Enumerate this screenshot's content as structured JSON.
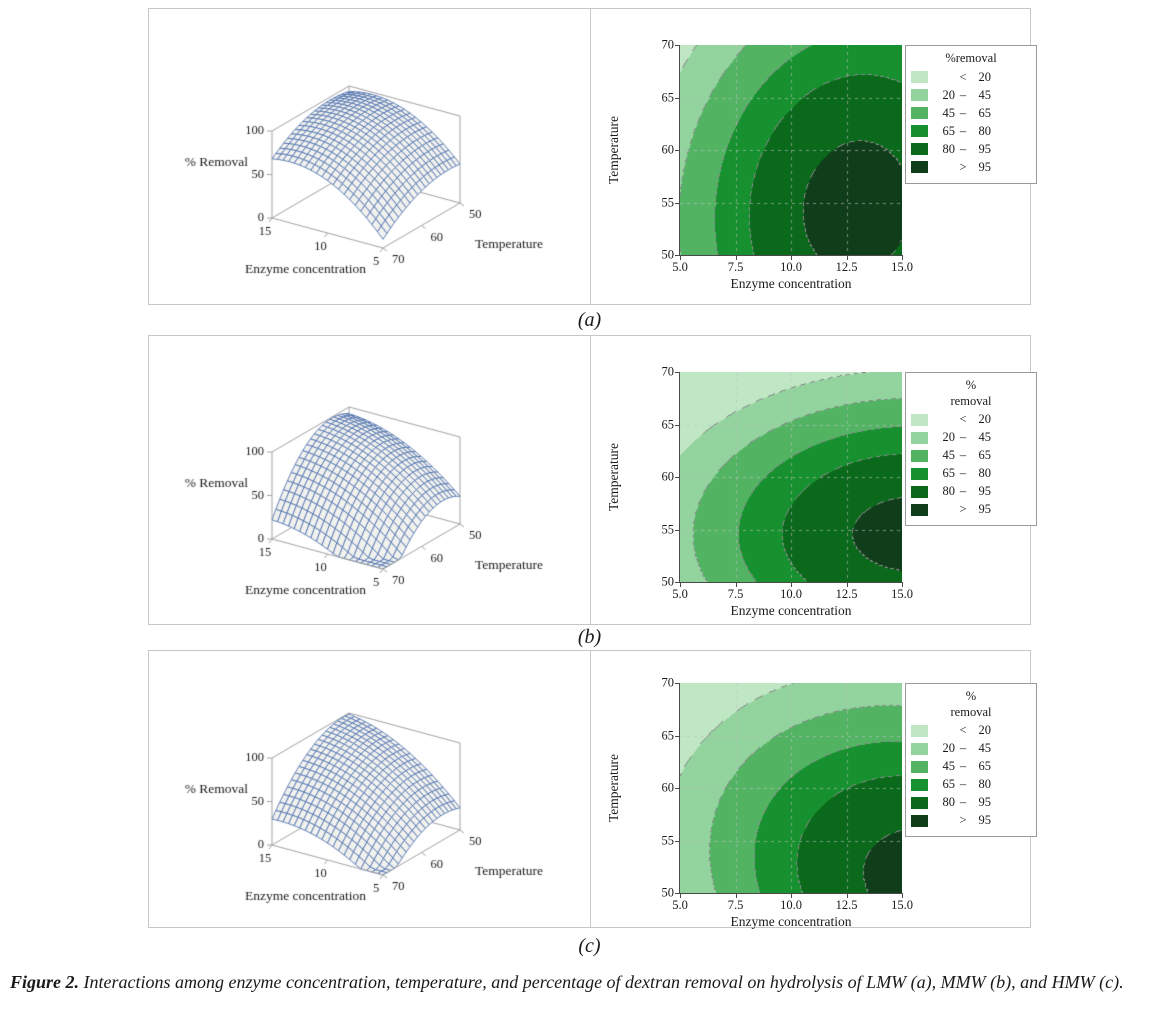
{
  "figure": {
    "caption_label": "Figure 2.",
    "caption_text": " Interactions among enzyme concentration, temperature, and percentage of dextran removal on hydrolysis of LMW (a), MMW (b), and HMW (c)."
  },
  "colors": {
    "band_colors": [
      "#bfe7c3",
      "#92d39e",
      "#52b463",
      "#17912f",
      "#0b691c",
      "#113e1a"
    ],
    "wireframe": "#4a6fad",
    "surface_fill": "#f1f1ee",
    "axis_gray": "#a0a0a0",
    "border_gray": "#c7c7c7",
    "contour_boundary": "#8a8a8a",
    "text": "#1a1a1a"
  },
  "chart_data": [
    {
      "panel_label": "(a)",
      "sample": "LMW",
      "type": "surface+contour",
      "surface": {
        "z_label": "% Removal",
        "z_ticks": [
          "0",
          "50",
          "100"
        ],
        "x_label": "Enzyme concentration",
        "x_ticks": [
          "15",
          "10",
          "5"
        ],
        "y_label": "Temperature",
        "y_ticks": [
          "70",
          "60",
          "50"
        ],
        "x_range": [
          5,
          15
        ],
        "y_range": [
          50,
          70
        ],
        "z_range": [
          0,
          100
        ]
      },
      "contour": {
        "x_label": "Enzyme concentration",
        "y_label": "Temperature",
        "x_ticks": [
          "5.0",
          "7.5",
          "10.0",
          "12.5",
          "15.0"
        ],
        "y_ticks": [
          "70",
          "65",
          "60",
          "55",
          "50"
        ],
        "x_range": [
          5,
          15
        ],
        "y_range": [
          50,
          70
        ],
        "legend": {
          "title_lines": [
            "%removal",
            ""
          ],
          "entries": [
            {
              "lo": "",
              "op": "<",
              "hi": "20"
            },
            {
              "lo": "20",
              "op": "–",
              "hi": "45"
            },
            {
              "lo": "45",
              "op": "–",
              "hi": "65"
            },
            {
              "lo": "65",
              "op": "–",
              "hi": "80"
            },
            {
              "lo": "80",
              "op": "–",
              "hi": "95"
            },
            {
              "lo": "",
              "op": ">",
              "hi": "95"
            }
          ]
        }
      },
      "model": {
        "z0": 100,
        "e0": 13,
        "t0": 54.5,
        "A": 0.85,
        "B": 0.125,
        "C": -0.045
      }
    },
    {
      "panel_label": "(b)",
      "sample": "MMW",
      "type": "surface+contour",
      "surface": {
        "z_label": "% Removal",
        "z_ticks": [
          "0",
          "50",
          "100"
        ],
        "x_label": "Enzyme concentration",
        "x_ticks": [
          "15",
          "10",
          "5"
        ],
        "y_label": "Temperature",
        "y_ticks": [
          "70",
          "60",
          "50"
        ],
        "x_range": [
          5,
          15
        ],
        "y_range": [
          50,
          70
        ],
        "z_range": [
          0,
          100
        ]
      },
      "contour": {
        "x_label": "Enzyme concentration",
        "y_label": "Temperature",
        "x_ticks": [
          "5.0",
          "7.5",
          "10.0",
          "12.5",
          "15.0"
        ],
        "y_ticks": [
          "70",
          "65",
          "60",
          "55",
          "50"
        ],
        "x_range": [
          5,
          15
        ],
        "y_range": [
          50,
          70
        ],
        "legend": {
          "title_lines": [
            "%",
            "removal"
          ],
          "entries": [
            {
              "lo": "",
              "op": "<",
              "hi": "20"
            },
            {
              "lo": "20",
              "op": "–",
              "hi": "45"
            },
            {
              "lo": "45",
              "op": "–",
              "hi": "65"
            },
            {
              "lo": "65",
              "op": "–",
              "hi": "80"
            },
            {
              "lo": "80",
              "op": "–",
              "hi": "95"
            },
            {
              "lo": "",
              "op": ">",
              "hi": "95"
            }
          ]
        }
      },
      "model": {
        "z0": 99,
        "e0": 15.5,
        "t0": 54.5,
        "A": 0.55,
        "B": 0.32,
        "C": 0
      }
    },
    {
      "panel_label": "(c)",
      "sample": "HMW",
      "type": "surface+contour",
      "surface": {
        "z_label": "% Removal",
        "z_ticks": [
          "0",
          "50",
          "100"
        ],
        "x_label": "Enzyme concentration",
        "x_ticks": [
          "15",
          "10",
          "5"
        ],
        "y_label": "Temperature",
        "y_ticks": [
          "70",
          "60",
          "50"
        ],
        "x_range": [
          5,
          15
        ],
        "y_range": [
          50,
          70
        ],
        "z_range": [
          0,
          100
        ]
      },
      "contour": {
        "x_label": "Enzyme concentration",
        "y_label": "Temperature",
        "x_ticks": [
          "5.0",
          "7.5",
          "10.0",
          "12.5",
          "15.0"
        ],
        "y_ticks": [
          "70",
          "65",
          "60",
          "55",
          "50"
        ],
        "x_range": [
          5,
          15
        ],
        "y_range": [
          50,
          70
        ],
        "legend": {
          "title_lines": [
            "%",
            "removal"
          ],
          "entries": [
            {
              "lo": "",
              "op": "<",
              "hi": "20"
            },
            {
              "lo": "20",
              "op": "–",
              "hi": "45"
            },
            {
              "lo": "45",
              "op": "–",
              "hi": "65"
            },
            {
              "lo": "65",
              "op": "–",
              "hi": "80"
            },
            {
              "lo": "80",
              "op": "–",
              "hi": "95"
            },
            {
              "lo": "",
              "op": ">",
              "hi": "95"
            }
          ]
        }
      },
      "model": {
        "z0": 100,
        "e0": 16.3,
        "t0": 51,
        "A": 0.572,
        "B": 0.2,
        "C": 0.12
      }
    }
  ]
}
